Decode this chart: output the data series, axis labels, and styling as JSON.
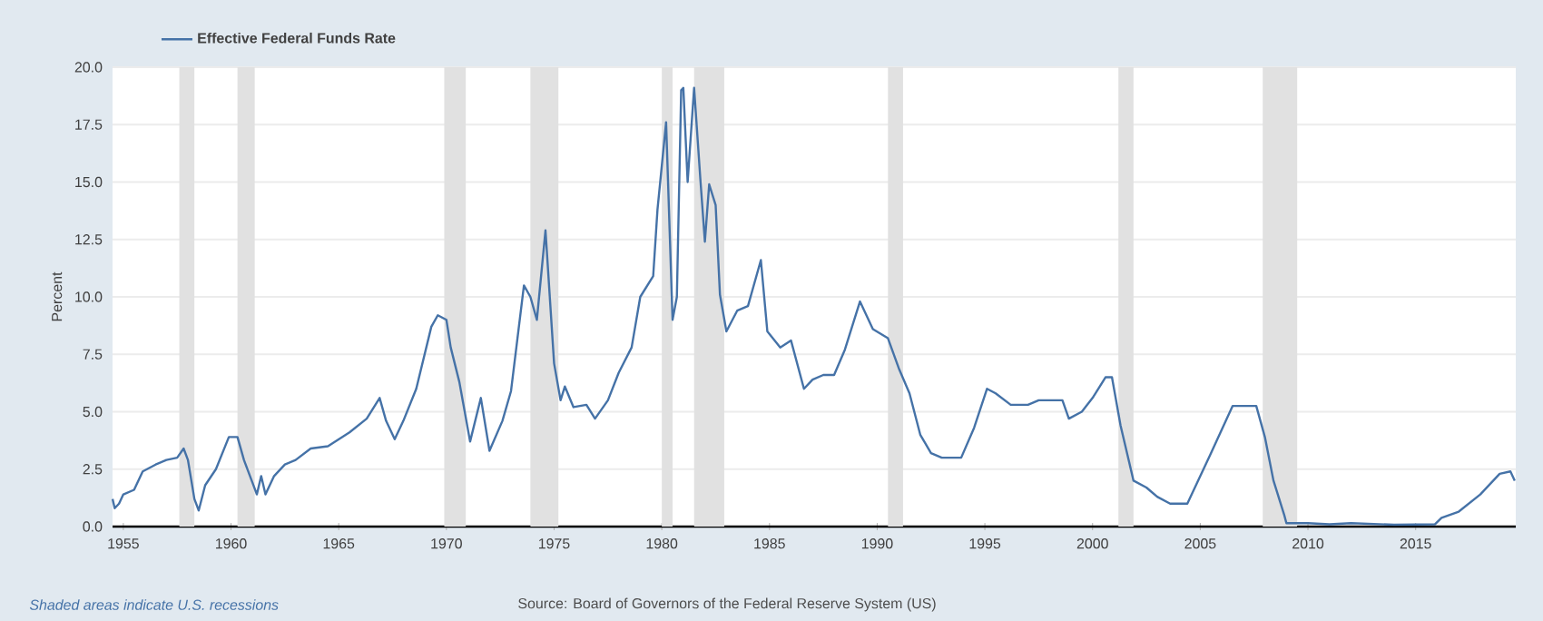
{
  "chart_data": {
    "type": "line",
    "ylabel": "Percent",
    "annotations": [
      "Shaded areas indicate U.S. recessions",
      "Source: Board of Governors of the Federal Reserve System (US)"
    ],
    "xlim": [
      1954.5,
      2019.65
    ],
    "xticks": [
      1955,
      1960,
      1965,
      1970,
      1975,
      1980,
      1985,
      1990,
      1995,
      2000,
      2005,
      2010,
      2015
    ],
    "ylim": [
      0,
      20
    ],
    "yticks": [
      {
        "value": 0,
        "label": "0.0"
      },
      {
        "value": 2.5,
        "label": "2.5"
      },
      {
        "value": 5,
        "label": "5.0"
      },
      {
        "value": 7.5,
        "label": "7.5"
      },
      {
        "value": 10,
        "label": "10.0"
      },
      {
        "value": 12.5,
        "label": "12.5"
      },
      {
        "value": 15,
        "label": "15.0"
      },
      {
        "value": 17.5,
        "label": "17.5"
      },
      {
        "value": 20,
        "label": "20.0"
      }
    ],
    "grid": "y",
    "legend": "top left",
    "bands": [
      {
        "axis": "x",
        "from": 1957.6,
        "to": 1958.3,
        "color": "#e1e1e1"
      },
      {
        "axis": "x",
        "from": 1960.3,
        "to": 1961.1,
        "color": "#e1e1e1"
      },
      {
        "axis": "x",
        "from": 1969.9,
        "to": 1970.9,
        "color": "#e1e1e1"
      },
      {
        "axis": "x",
        "from": 1973.9,
        "to": 1975.2,
        "color": "#e1e1e1"
      },
      {
        "axis": "x",
        "from": 1980.0,
        "to": 1980.5,
        "color": "#e1e1e1"
      },
      {
        "axis": "x",
        "from": 1981.5,
        "to": 1982.9,
        "color": "#e1e1e1"
      },
      {
        "axis": "x",
        "from": 1990.5,
        "to": 1991.2,
        "color": "#e1e1e1"
      },
      {
        "axis": "x",
        "from": 2001.2,
        "to": 2001.9,
        "color": "#e1e1e1"
      },
      {
        "axis": "x",
        "from": 2007.9,
        "to": 2009.5,
        "color": "#e1e1e1"
      }
    ],
    "series": [
      {
        "name": "Effective Federal Funds Rate",
        "color": "#4572a7",
        "marker": "none",
        "line_style": "solid",
        "x": [
          1954.5,
          1954.6,
          1954.8,
          1955.0,
          1955.5,
          1955.9,
          1956.5,
          1957.0,
          1957.5,
          1957.8,
          1958.0,
          1958.3,
          1958.5,
          1958.8,
          1959.3,
          1959.9,
          1960.3,
          1960.6,
          1961.0,
          1961.2,
          1961.4,
          1961.6,
          1962.0,
          1962.5,
          1963.0,
          1963.7,
          1964.5,
          1965.5,
          1966.3,
          1966.9,
          1967.2,
          1967.6,
          1968.0,
          1968.6,
          1969.3,
          1969.6,
          1970.0,
          1970.2,
          1970.6,
          1971.1,
          1971.6,
          1972.0,
          1972.6,
          1973.0,
          1973.6,
          1973.9,
          1974.2,
          1974.6,
          1975.0,
          1975.3,
          1975.5,
          1975.9,
          1976.5,
          1976.9,
          1977.5,
          1978.0,
          1978.6,
          1979.0,
          1979.6,
          1979.8,
          1980.2,
          1980.5,
          1980.7,
          1980.9,
          1981.0,
          1981.2,
          1981.5,
          1981.8,
          1982.0,
          1982.2,
          1982.5,
          1982.7,
          1983.0,
          1983.5,
          1984.0,
          1984.6,
          1984.9,
          1985.5,
          1986.0,
          1986.6,
          1987.0,
          1987.5,
          1988.0,
          1988.5,
          1989.2,
          1989.8,
          1990.5,
          1991.0,
          1991.5,
          1992.0,
          1992.5,
          1993.0,
          1993.9,
          1994.5,
          1995.1,
          1995.5,
          1996.2,
          1997.0,
          1997.5,
          1998.6,
          1998.9,
          1999.5,
          2000.0,
          2000.6,
          2000.9,
          2001.3,
          2001.9,
          2002.5,
          2003.0,
          2003.6,
          2004.4,
          2005.5,
          2006.5,
          2007.6,
          2008.0,
          2008.4,
          2008.9,
          2009.0,
          2010.0,
          2011.0,
          2012.0,
          2014.0,
          2015.9,
          2016.2,
          2017.0,
          2018.0,
          2018.9,
          2019.4,
          2019.6
        ],
        "values": [
          1.2,
          0.8,
          1.0,
          1.4,
          1.6,
          2.4,
          2.7,
          2.9,
          3.0,
          3.4,
          2.9,
          1.2,
          0.7,
          1.8,
          2.5,
          3.9,
          3.9,
          2.9,
          1.9,
          1.4,
          2.2,
          1.4,
          2.2,
          2.7,
          2.9,
          3.4,
          3.5,
          4.1,
          4.7,
          5.6,
          4.6,
          3.8,
          4.6,
          6.0,
          8.7,
          9.2,
          9.0,
          7.8,
          6.3,
          3.7,
          5.6,
          3.3,
          4.6,
          5.9,
          10.5,
          10.0,
          9.0,
          12.9,
          7.1,
          5.5,
          6.1,
          5.2,
          5.3,
          4.7,
          5.5,
          6.7,
          7.8,
          10.0,
          10.9,
          13.8,
          17.6,
          9.0,
          10.0,
          19.0,
          19.1,
          15.0,
          19.1,
          15.0,
          12.4,
          14.9,
          14.0,
          10.1,
          8.5,
          9.4,
          9.6,
          11.6,
          8.5,
          7.8,
          8.1,
          6.0,
          6.4,
          6.6,
          6.6,
          7.7,
          9.8,
          8.6,
          8.2,
          6.9,
          5.8,
          4.0,
          3.2,
          3.0,
          3.0,
          4.3,
          6.0,
          5.8,
          5.3,
          5.3,
          5.5,
          5.5,
          4.7,
          5.0,
          5.6,
          6.5,
          6.5,
          4.4,
          2.0,
          1.7,
          1.3,
          1.0,
          1.0,
          3.2,
          5.25,
          5.25,
          3.9,
          2.0,
          0.5,
          0.15,
          0.15,
          0.1,
          0.15,
          0.08,
          0.1,
          0.38,
          0.65,
          1.4,
          2.3,
          2.4,
          2.0
        ]
      }
    ]
  }
}
